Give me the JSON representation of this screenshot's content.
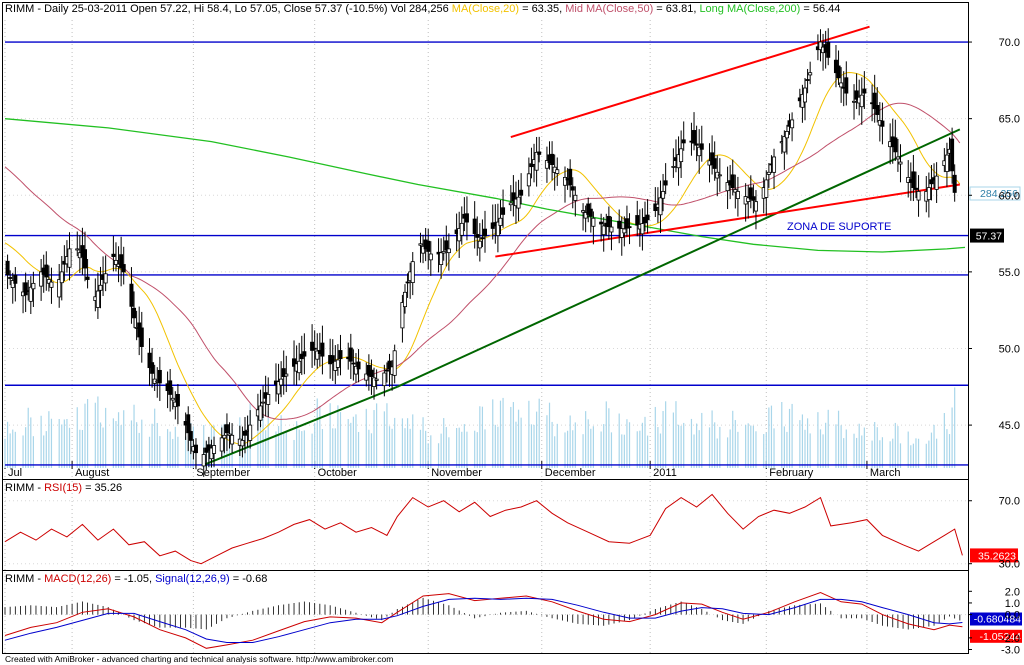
{
  "footer": "Created with AmiBroker - advanced charting and technical analysis software. http://www.amibroker.com",
  "chart_data": [
    {
      "type": "candlestick",
      "title_parts": [
        {
          "text": "RIMM - Daily 25-03-2011 Open 57.22, Hi 58.4, Lo 57.05, Close 57.37 (-10.5%) Vol 284,256 ",
          "color": "#000000"
        },
        {
          "text": "MA(Close,20)",
          "color": "#f2c200"
        },
        {
          "text": " = 63.35, ",
          "color": "#000000"
        },
        {
          "text": "Mid MA(Close,50)",
          "color": "#c0506a"
        },
        {
          "text": " = 63.81, ",
          "color": "#000000"
        },
        {
          "text": "Long MA(Close,200)",
          "color": "#22c022"
        },
        {
          "text": " = 56.44",
          "color": "#000000"
        }
      ],
      "months": [
        {
          "label": "Jul",
          "day": 0
        },
        {
          "label": "August",
          "day": 26
        },
        {
          "label": "September",
          "day": 73
        },
        {
          "label": "October",
          "day": 120
        },
        {
          "label": "November",
          "day": 164
        },
        {
          "label": "December",
          "day": 208
        },
        {
          "label": "2011",
          "day": 250
        },
        {
          "label": "February",
          "day": 295
        },
        {
          "label": "March",
          "day": 334
        }
      ],
      "days_total": 372,
      "y_ticks": [
        45.0,
        50.0,
        55.0,
        60.0,
        65.0,
        70.0
      ],
      "y_tick_labels": [
        "45.0",
        "50.0",
        "55.0",
        "60.0",
        "65.0",
        "70.0"
      ],
      "ylim": [
        42.2,
        71.7
      ],
      "last_volume_label": "284,256",
      "last_close_label": "57.37",
      "annotation": "ZONA DE SUPORTE",
      "horizontal_levels": [
        70.0,
        57.37,
        54.8,
        47.6,
        42.4
      ],
      "trend_lines": [
        {
          "from": [
            77,
            42.4
          ],
          "to": [
            152,
            47.5
          ],
          "color": "#006600"
        },
        {
          "from": [
            152,
            47.5
          ],
          "to": [
            370,
            64.3
          ],
          "color": "#006600"
        },
        {
          "from": [
            196,
            63.8
          ],
          "to": [
            335,
            71.0
          ],
          "color": "#ff0000"
        },
        {
          "from": [
            190,
            56.0
          ],
          "to": [
            370,
            60.7
          ],
          "color": "#ff0000"
        }
      ],
      "ma200": [
        [
          0,
          65.0
        ],
        [
          40,
          64.4
        ],
        [
          80,
          63.5
        ],
        [
          110,
          62.5
        ],
        [
          140,
          61.4
        ],
        [
          160,
          60.7
        ],
        [
          190,
          59.8
        ],
        [
          210,
          59.1
        ],
        [
          230,
          58.5
        ],
        [
          250,
          57.9
        ],
        [
          270,
          57.3
        ],
        [
          290,
          56.8
        ],
        [
          315,
          56.4
        ],
        [
          340,
          56.3
        ],
        [
          365,
          56.5
        ],
        [
          372,
          56.6
        ]
      ],
      "closes": [
        [
          0,
          55.0
        ],
        [
          8,
          53.5
        ],
        [
          14,
          55.0
        ],
        [
          20,
          54.0
        ],
        [
          26,
          57.0
        ],
        [
          30,
          56.0
        ],
        [
          34,
          53.0
        ],
        [
          38,
          54.5
        ],
        [
          42,
          56.0
        ],
        [
          46,
          55.0
        ],
        [
          50,
          52.0
        ],
        [
          54,
          49.5
        ],
        [
          58,
          48.0
        ],
        [
          62,
          47.5
        ],
        [
          68,
          46.0
        ],
        [
          72,
          44.0
        ],
        [
          75,
          42.8
        ],
        [
          80,
          43.5
        ],
        [
          86,
          44.5
        ],
        [
          92,
          44.0
        ],
        [
          98,
          46.0
        ],
        [
          104,
          47.5
        ],
        [
          110,
          48.5
        ],
        [
          116,
          49.5
        ],
        [
          120,
          50.0
        ],
        [
          126,
          49.0
        ],
        [
          132,
          49.5
        ],
        [
          138,
          48.5
        ],
        [
          144,
          48.0
        ],
        [
          150,
          48.8
        ],
        [
          154,
          53.0
        ],
        [
          160,
          57.0
        ],
        [
          166,
          56.0
        ],
        [
          172,
          56.5
        ],
        [
          178,
          58.5
        ],
        [
          184,
          57.0
        ],
        [
          190,
          58.0
        ],
        [
          196,
          59.5
        ],
        [
          200,
          60.0
        ],
        [
          206,
          62.8
        ],
        [
          212,
          62.0
        ],
        [
          218,
          61.0
        ],
        [
          224,
          59.0
        ],
        [
          232,
          58.0
        ],
        [
          240,
          57.8
        ],
        [
          248,
          58.2
        ],
        [
          252,
          59.0
        ],
        [
          258,
          61.5
        ],
        [
          264,
          63.8
        ],
        [
          270,
          63.0
        ],
        [
          276,
          61.5
        ],
        [
          282,
          60.5
        ],
        [
          286,
          60.0
        ],
        [
          292,
          59.5
        ],
        [
          298,
          62.5
        ],
        [
          304,
          64.5
        ],
        [
          310,
          67.0
        ],
        [
          316,
          70.0
        ],
        [
          322,
          68.0
        ],
        [
          328,
          66.0
        ],
        [
          334,
          66.8
        ],
        [
          340,
          64.5
        ],
        [
          346,
          62.5
        ],
        [
          352,
          60.5
        ],
        [
          356,
          60.0
        ],
        [
          362,
          61.5
        ],
        [
          366,
          63.0
        ],
        [
          370,
          57.37
        ]
      ],
      "volume": [
        [
          0,
          0.45
        ],
        [
          20,
          0.5
        ],
        [
          40,
          0.6
        ],
        [
          60,
          0.45
        ],
        [
          80,
          0.35
        ],
        [
          100,
          0.6
        ],
        [
          110,
          0.4
        ],
        [
          125,
          0.6
        ],
        [
          140,
          0.5
        ],
        [
          155,
          0.55
        ],
        [
          165,
          0.35
        ],
        [
          180,
          0.5
        ],
        [
          200,
          0.65
        ],
        [
          215,
          0.45
        ],
        [
          230,
          0.55
        ],
        [
          245,
          0.45
        ],
        [
          260,
          0.55
        ],
        [
          275,
          0.45
        ],
        [
          290,
          0.5
        ],
        [
          305,
          0.55
        ],
        [
          320,
          0.45
        ],
        [
          340,
          0.4
        ],
        [
          355,
          0.3
        ],
        [
          365,
          0.45
        ],
        [
          370,
          0.75
        ]
      ]
    },
    {
      "type": "line",
      "title_parts": [
        {
          "text": "RIMM - ",
          "color": "#000000"
        },
        {
          "text": "RSI(15)",
          "color": "#cc0000"
        },
        {
          "text": " = 35.26",
          "color": "#000000"
        }
      ],
      "y_ticks": [
        30.0,
        70.0
      ],
      "y_tick_labels": [
        "30.0",
        "70.0"
      ],
      "ylim": [
        26,
        80
      ],
      "last_value_label": "35.2623",
      "series": [
        {
          "values": [
            [
              0,
              44
            ],
            [
              6,
              50
            ],
            [
              12,
              45
            ],
            [
              18,
              52
            ],
            [
              24,
              47
            ],
            [
              30,
              55
            ],
            [
              36,
              45
            ],
            [
              42,
              52
            ],
            [
              48,
              42
            ],
            [
              54,
              44
            ],
            [
              60,
              35
            ],
            [
              66,
              38
            ],
            [
              72,
              32
            ],
            [
              76,
              30
            ],
            [
              82,
              35
            ],
            [
              88,
              40
            ],
            [
              94,
              43
            ],
            [
              100,
              46
            ],
            [
              106,
              50
            ],
            [
              112,
              55
            ],
            [
              118,
              58
            ],
            [
              124,
              52
            ],
            [
              130,
              56
            ],
            [
              136,
              50
            ],
            [
              142,
              53
            ],
            [
              148,
              48
            ],
            [
              152,
              60
            ],
            [
              158,
              72
            ],
            [
              164,
              66
            ],
            [
              170,
              70
            ],
            [
              176,
              63
            ],
            [
              182,
              69
            ],
            [
              188,
              60
            ],
            [
              194,
              64
            ],
            [
              200,
              66
            ],
            [
              206,
              70
            ],
            [
              212,
              62
            ],
            [
              218,
              56
            ],
            [
              226,
              50
            ],
            [
              234,
              44
            ],
            [
              242,
              43
            ],
            [
              250,
              48
            ],
            [
              256,
              65
            ],
            [
              262,
              72
            ],
            [
              268,
              66
            ],
            [
              274,
              74
            ],
            [
              280,
              62
            ],
            [
              286,
              52
            ],
            [
              292,
              60
            ],
            [
              298,
              64
            ],
            [
              304,
              62
            ],
            [
              310,
              66
            ],
            [
              316,
              72
            ],
            [
              320,
              54
            ],
            [
              328,
              56
            ],
            [
              334,
              58
            ],
            [
              340,
              48
            ],
            [
              348,
              42
            ],
            [
              354,
              38
            ],
            [
              360,
              44
            ],
            [
              364,
              48
            ],
            [
              368,
              52
            ],
            [
              371,
              35.26
            ]
          ],
          "color": "#cc0000"
        }
      ]
    },
    {
      "type": "line",
      "title_parts": [
        {
          "text": "RIMM - ",
          "color": "#000000"
        },
        {
          "text": "MACD(12,26)",
          "color": "#cc0000"
        },
        {
          "text": " = -1.05, ",
          "color": "#000000"
        },
        {
          "text": "Signal(12,26,9)",
          "color": "#0000cc"
        },
        {
          "text": " = -0.68",
          "color": "#000000"
        }
      ],
      "y_ticks": [
        -3.0,
        -2.0,
        0.0,
        1.0,
        2.0
      ],
      "y_tick_labels": [
        "-3.0",
        "-2.0",
        "0.0",
        "1.0",
        "2.0"
      ],
      "ylim": [
        -3.3,
        3.4
      ],
      "last_signal_label": "-0.680484",
      "last_macd_label": "-1.05244",
      "series": [
        {
          "name": "MACD(12,26)",
          "values": [
            [
              0,
              -1.8
            ],
            [
              10,
              -1.1
            ],
            [
              20,
              -0.7
            ],
            [
              30,
              0.2
            ],
            [
              40,
              0.5
            ],
            [
              50,
              -0.2
            ],
            [
              60,
              -1.3
            ],
            [
              70,
              -2.0
            ],
            [
              78,
              -2.9
            ],
            [
              86,
              -2.6
            ],
            [
              96,
              -2.2
            ],
            [
              106,
              -1.4
            ],
            [
              116,
              -0.6
            ],
            [
              126,
              -0.2
            ],
            [
              136,
              -0.3
            ],
            [
              146,
              -0.7
            ],
            [
              152,
              0.2
            ],
            [
              162,
              1.6
            ],
            [
              172,
              1.8
            ],
            [
              182,
              1.2
            ],
            [
              192,
              1.4
            ],
            [
              202,
              1.6
            ],
            [
              212,
              1.1
            ],
            [
              222,
              0.3
            ],
            [
              232,
              -0.4
            ],
            [
              242,
              -0.6
            ],
            [
              252,
              0.0
            ],
            [
              262,
              1.0
            ],
            [
              270,
              0.9
            ],
            [
              278,
              0.2
            ],
            [
              286,
              -0.4
            ],
            [
              296,
              0.2
            ],
            [
              306,
              1.1
            ],
            [
              316,
              1.9
            ],
            [
              324,
              1.1
            ],
            [
              332,
              0.9
            ],
            [
              340,
              0.0
            ],
            [
              350,
              -0.8
            ],
            [
              360,
              -1.3
            ],
            [
              366,
              -0.9
            ],
            [
              371,
              -1.05
            ]
          ],
          "color": "#cc0000"
        },
        {
          "name": "Signal(12,26,9)",
          "values": [
            [
              0,
              -2.2
            ],
            [
              10,
              -1.6
            ],
            [
              20,
              -1.1
            ],
            [
              30,
              -0.5
            ],
            [
              40,
              0.1
            ],
            [
              50,
              0.1
            ],
            [
              60,
              -0.6
            ],
            [
              70,
              -1.3
            ],
            [
              78,
              -2.1
            ],
            [
              86,
              -2.4
            ],
            [
              96,
              -2.4
            ],
            [
              106,
              -1.9
            ],
            [
              116,
              -1.3
            ],
            [
              126,
              -0.7
            ],
            [
              136,
              -0.4
            ],
            [
              146,
              -0.4
            ],
            [
              152,
              -0.1
            ],
            [
              162,
              0.7
            ],
            [
              172,
              1.3
            ],
            [
              182,
              1.4
            ],
            [
              192,
              1.3
            ],
            [
              202,
              1.4
            ],
            [
              212,
              1.3
            ],
            [
              222,
              0.8
            ],
            [
              232,
              0.2
            ],
            [
              242,
              -0.3
            ],
            [
              252,
              -0.3
            ],
            [
              262,
              0.3
            ],
            [
              270,
              0.6
            ],
            [
              278,
              0.5
            ],
            [
              286,
              0.1
            ],
            [
              296,
              0.0
            ],
            [
              306,
              0.6
            ],
            [
              316,
              1.3
            ],
            [
              324,
              1.3
            ],
            [
              332,
              1.1
            ],
            [
              340,
              0.6
            ],
            [
              350,
              0.0
            ],
            [
              360,
              -0.7
            ],
            [
              366,
              -0.8
            ],
            [
              371,
              -0.68
            ]
          ],
          "color": "#0000cc"
        }
      ]
    }
  ]
}
